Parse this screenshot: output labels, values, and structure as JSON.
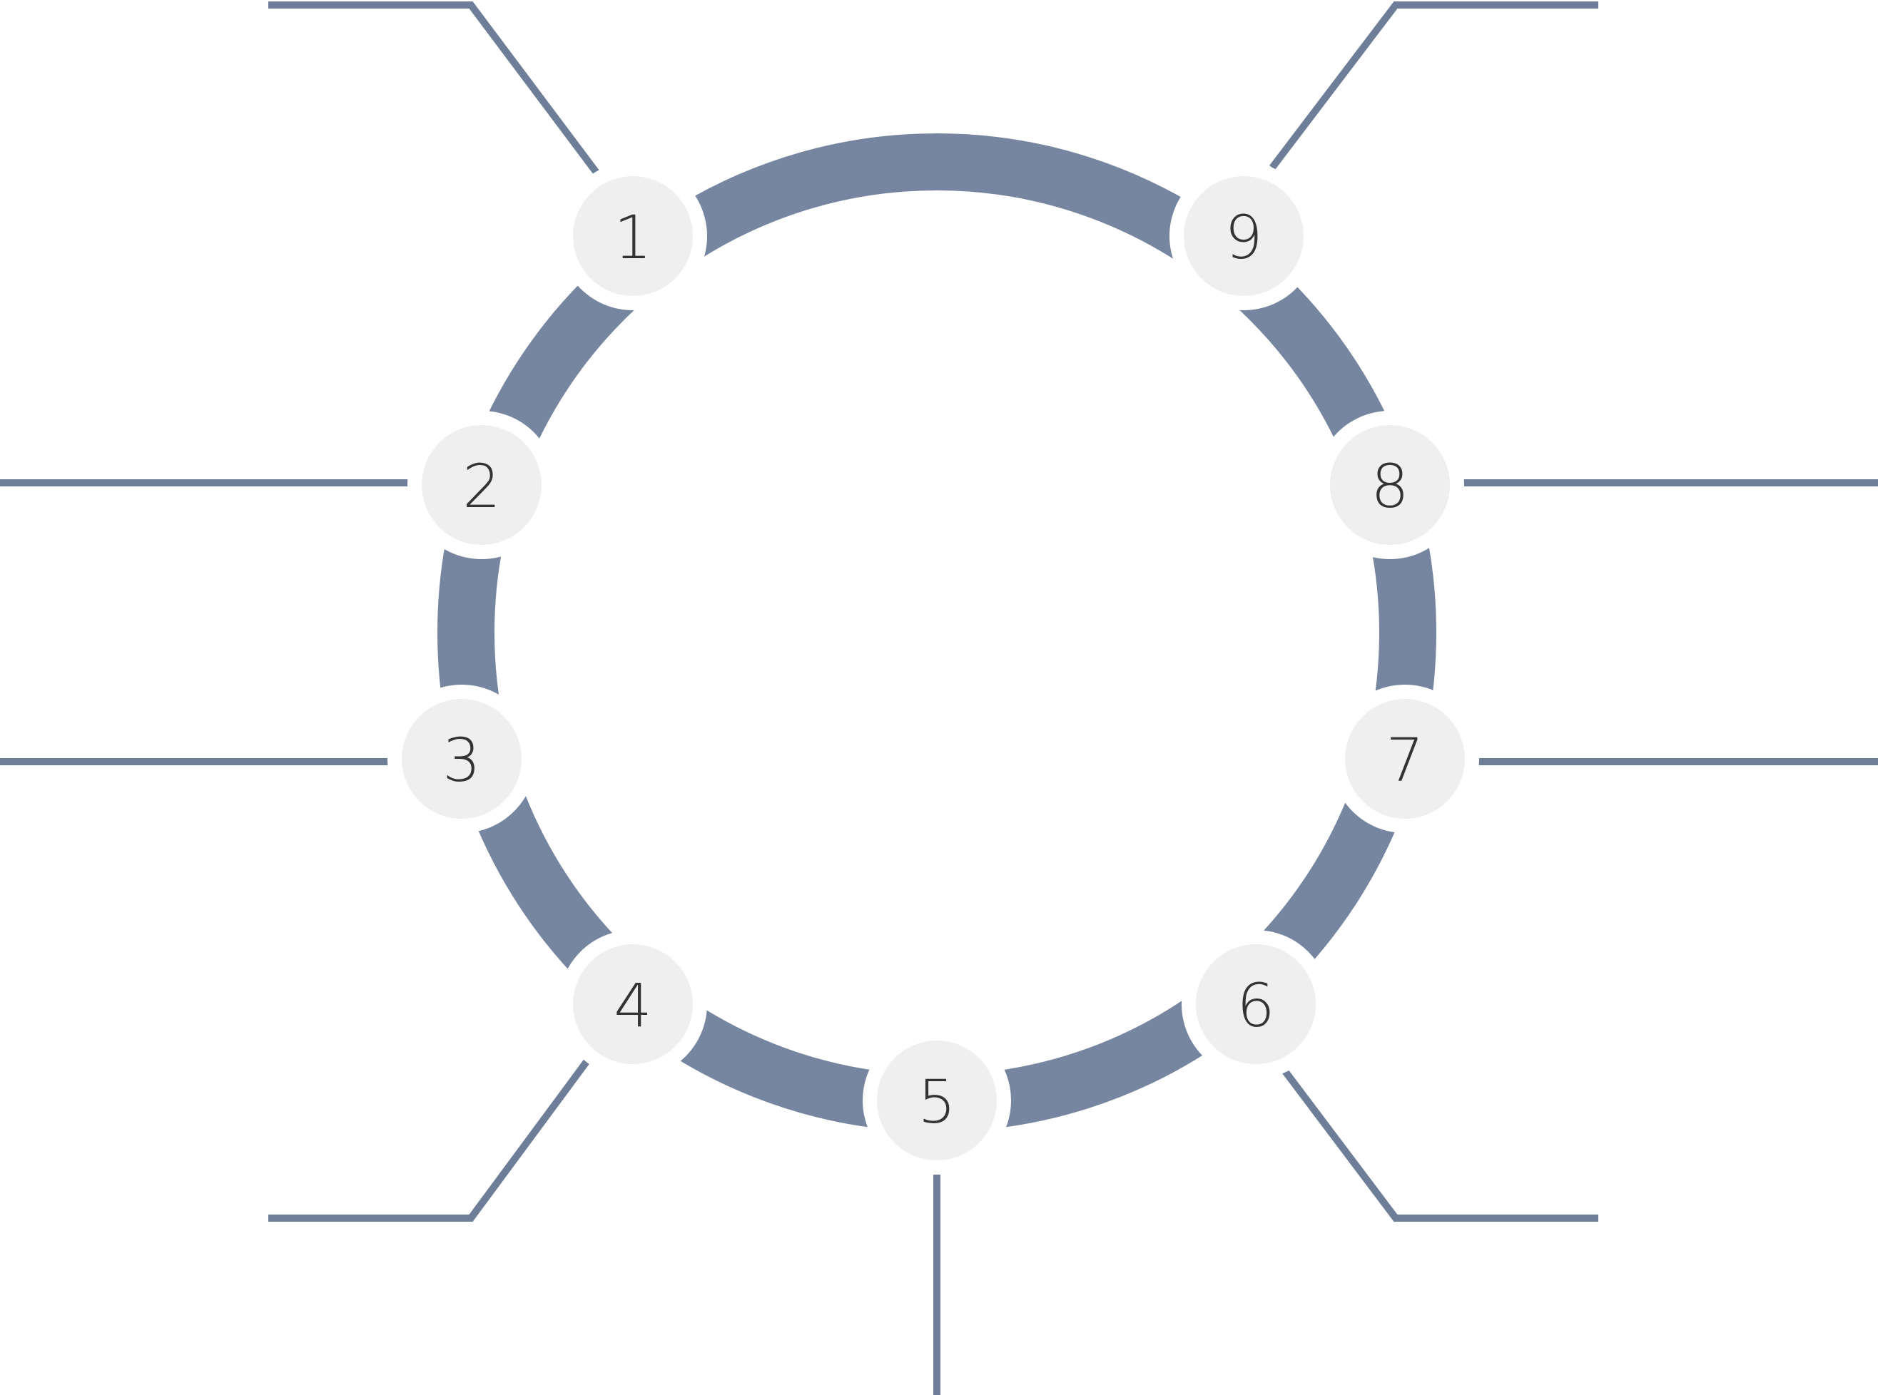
{
  "diagram": {
    "type": "circular-cycle",
    "ring_color": "#7786a0",
    "connector_color": "#6f7e98",
    "node_fill": "#efefef",
    "label_color": "#333333",
    "background": "#ffffff",
    "nodes": [
      {
        "label": "1"
      },
      {
        "label": "2"
      },
      {
        "label": "3"
      },
      {
        "label": "4"
      },
      {
        "label": "5"
      },
      {
        "label": "6"
      },
      {
        "label": "7"
      },
      {
        "label": "8"
      },
      {
        "label": "9"
      }
    ]
  }
}
